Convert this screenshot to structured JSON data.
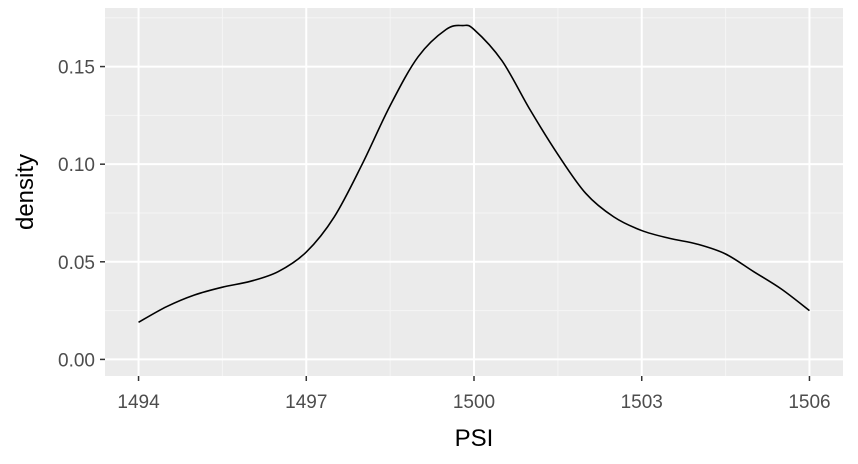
{
  "chart_data": {
    "type": "line",
    "title": "",
    "xlabel": "PSI",
    "ylabel": "density",
    "xlim": [
      1493.4,
      1506.6
    ],
    "ylim": [
      -0.0085,
      0.18
    ],
    "x_ticks": [
      1494,
      1497,
      1500,
      1503,
      1506
    ],
    "x_tick_labels": [
      "1494",
      "1497",
      "1500",
      "1503",
      "1506"
    ],
    "y_ticks": [
      0.0,
      0.05,
      0.1,
      0.15
    ],
    "y_tick_labels": [
      "0.00",
      "0.05",
      "0.10",
      "0.15"
    ],
    "grid": true,
    "legend": "none",
    "colors": {
      "panel_background": "#ebebeb",
      "grid_major": "#ffffff",
      "grid_minor": "#f5f5f5",
      "line": "#000000",
      "tick_text": "#4d4d4d",
      "axis_title_text": "#000000"
    },
    "series": [
      {
        "x": [
          1494.0,
          1494.5,
          1495.0,
          1495.5,
          1496.0,
          1496.5,
          1497.0,
          1497.5,
          1498.0,
          1498.5,
          1499.0,
          1499.5,
          1499.8,
          1500.0,
          1500.5,
          1501.0,
          1501.5,
          1502.0,
          1502.5,
          1503.0,
          1503.5,
          1504.0,
          1504.5,
          1505.0,
          1505.5,
          1506.0
        ],
        "values": [
          0.019,
          0.027,
          0.033,
          0.037,
          0.04,
          0.045,
          0.055,
          0.073,
          0.1,
          0.13,
          0.155,
          0.169,
          0.171,
          0.169,
          0.153,
          0.128,
          0.105,
          0.085,
          0.073,
          0.066,
          0.062,
          0.059,
          0.054,
          0.045,
          0.036,
          0.025
        ]
      }
    ]
  }
}
